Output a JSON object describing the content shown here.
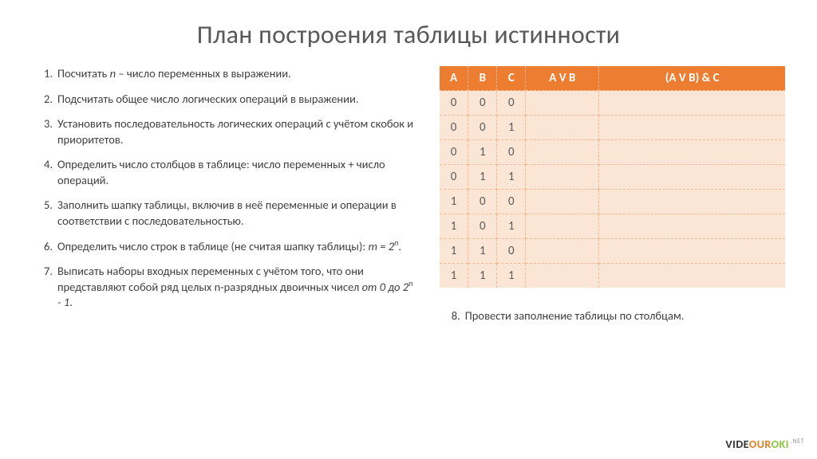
{
  "title": "План построения таблицы истинности",
  "steps_left_html": [
    "Посчитать <span class=\"italic\">n</span> – число переменных в выражении.",
    "Подсчитать общее число логических операций в выражении.",
    "Установить последовательность логических операций с учётом скобок и приоритетов.",
    "Определить число столбцов в таблице: число переменных + число операций.",
    "Заполнить шапку таблицы, включив в неё переменные и операции в соответствии с последовательностью.",
    "Определить число строк в таблице (не считая шапку таблицы): <span class=\"italic\">m = 2<span class=\"sup\">n</span></span>.",
    "Выписать наборы входных переменных с учётом того, что они представляют собой ряд целых n-разрядных двоичных чисел <span class=\"italic\">от 0 до 2<span class=\"sup\">n</span> - 1</span>."
  ],
  "right_step": {
    "num": "8.",
    "text": "Провести заполнение таблицы по столбцам."
  },
  "table": {
    "columns": [
      "A",
      "B",
      "C",
      "A V B",
      "(A V B) & C"
    ],
    "col_classes": [
      "col-narrow",
      "col-narrow",
      "col-narrow",
      "col-mid",
      ""
    ],
    "rows": [
      [
        "0",
        "0",
        "0",
        "",
        ""
      ],
      [
        "0",
        "0",
        "1",
        "",
        ""
      ],
      [
        "0",
        "1",
        "0",
        "",
        ""
      ],
      [
        "0",
        "1",
        "1",
        "",
        ""
      ],
      [
        "1",
        "0",
        "0",
        "",
        ""
      ],
      [
        "1",
        "0",
        "1",
        "",
        ""
      ],
      [
        "1",
        "1",
        "0",
        "",
        ""
      ],
      [
        "1",
        "1",
        "1",
        "",
        ""
      ]
    ],
    "header_bg": "#ec7d31",
    "header_fg": "#ffffff",
    "cell_bg": "#fbe5d5",
    "border_color": "#f5b890"
  },
  "watermark": {
    "part1": "VIDE",
    "part2": "OUR",
    "part3": "OKI",
    "suffix": ".NET"
  }
}
